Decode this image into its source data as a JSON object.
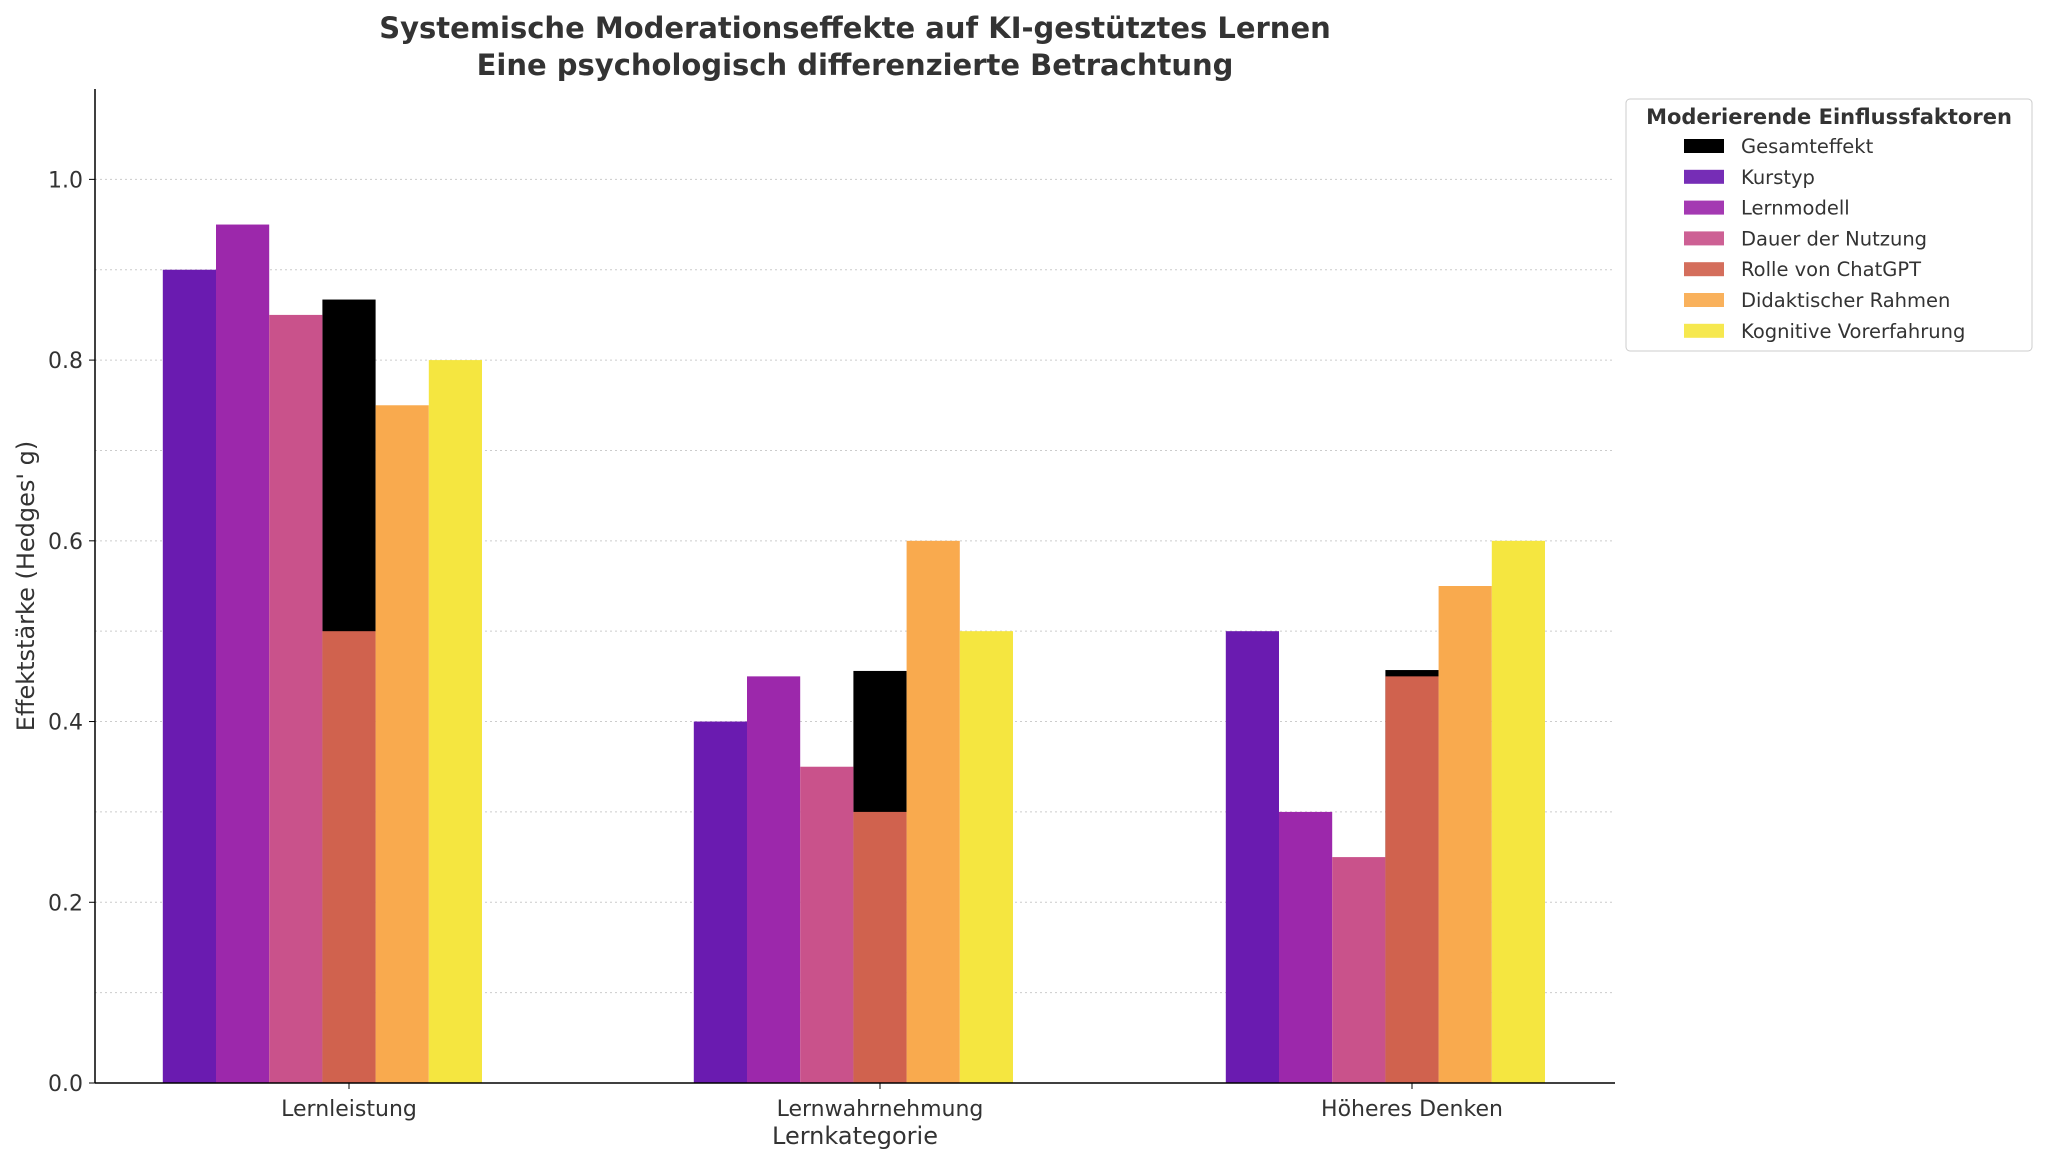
{
  "chart_data": {
    "type": "bar",
    "title": "Systemische Moderationseffekte auf KI-gestütztes Lernen",
    "subtitle": "Eine psychologisch differenzierte Betrachtung",
    "xlabel": "Lernkategorie",
    "ylabel": "Effektstärke (Hedges' g)",
    "ylim": [
      0,
      1.1
    ],
    "yticks": [
      "0.0",
      "0.2",
      "0.4",
      "0.6",
      "0.8",
      "1.0"
    ],
    "grid": "horizontal dotted",
    "categories": [
      "Lernleistung",
      "Lernwahrnehmung",
      "Höheres Denken"
    ],
    "legend": {
      "title": "Moderierende Einflussfaktoren",
      "placement": "outside top-right"
    },
    "series": [
      {
        "name": "Gesamteffekt",
        "color": "#000000",
        "slot": 3,
        "values": [
          0.867,
          0.456,
          0.457
        ]
      },
      {
        "name": "Kurstyp",
        "color": "#6a1bb0",
        "slot": 0,
        "values": [
          0.9,
          0.4,
          0.5
        ]
      },
      {
        "name": "Lernmodell",
        "color": "#9c28ab",
        "slot": 1,
        "values": [
          0.95,
          0.45,
          0.3
        ]
      },
      {
        "name": "Dauer der Nutzung",
        "color": "#c9528b",
        "slot": 2,
        "values": [
          0.85,
          0.35,
          0.25
        ]
      },
      {
        "name": "Rolle von ChatGPT",
        "color": "#d0624e",
        "slot": 3,
        "values": [
          0.5,
          0.3,
          0.45
        ]
      },
      {
        "name": "Didaktischer Rahmen",
        "color": "#f9aa4e",
        "slot": 4,
        "values": [
          0.75,
          0.6,
          0.55
        ]
      },
      {
        "name": "Kognitive Vorerfahrung",
        "color": "#f5e640",
        "slot": 5,
        "values": [
          0.8,
          0.5,
          0.6
        ]
      }
    ]
  }
}
